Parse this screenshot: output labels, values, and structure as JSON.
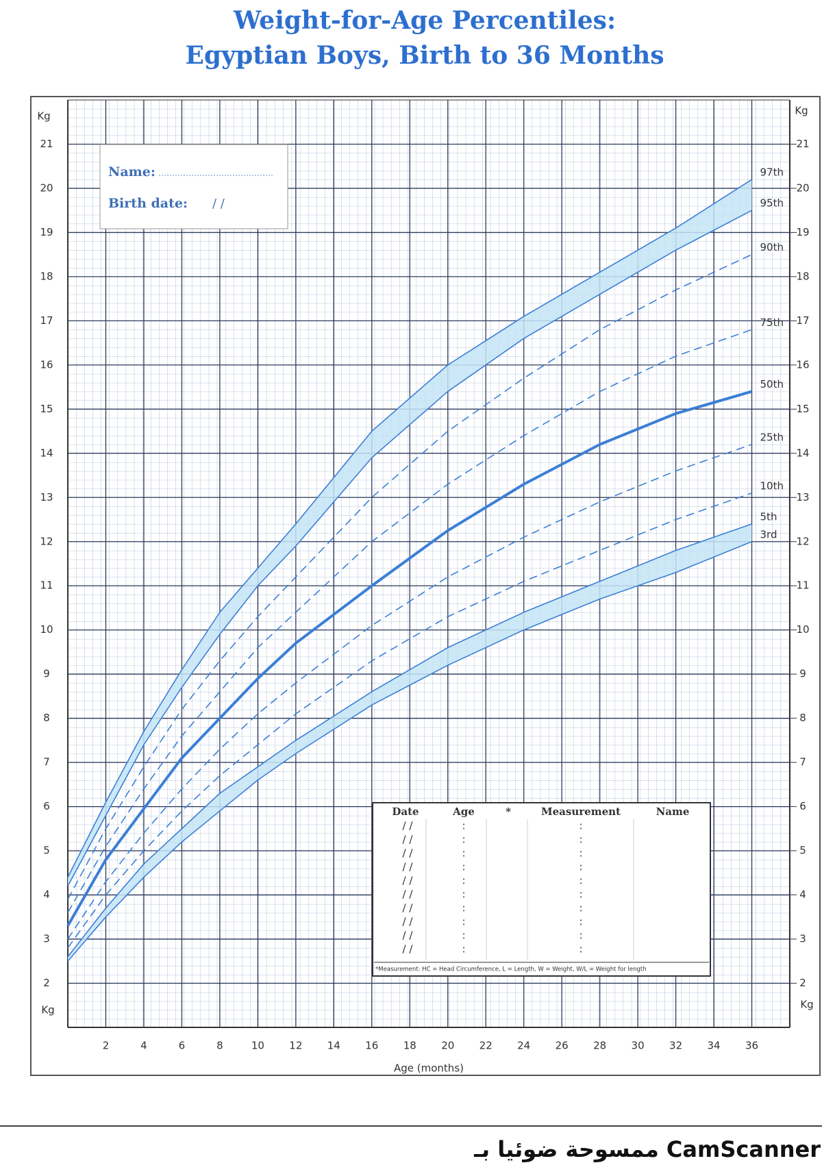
{
  "chart_data": {
    "type": "line",
    "title": "Weight-for-Age Percentiles:",
    "subtitle": "Egyptian Boys, Birth to 36 Months",
    "x_label": "Age (months)",
    "y_label": "Kg",
    "x": [
      0,
      2,
      4,
      6,
      8,
      10,
      12,
      16,
      20,
      24,
      28,
      32,
      36
    ],
    "xlim": [
      0,
      38
    ],
    "xticks": [
      2,
      4,
      6,
      8,
      10,
      12,
      14,
      16,
      18,
      20,
      22,
      24,
      26,
      28,
      30,
      32,
      34,
      36
    ],
    "ylim": [
      1,
      22
    ],
    "yticks": [
      2,
      3,
      4,
      5,
      6,
      7,
      8,
      9,
      10,
      11,
      12,
      13,
      14,
      15,
      16,
      17,
      18,
      19,
      20,
      21
    ],
    "y2lim": [
      1,
      22
    ],
    "y2ticks": [
      2,
      3,
      4,
      5,
      6,
      7,
      8,
      9,
      10,
      11,
      12,
      13,
      14,
      15,
      16,
      17,
      18,
      19,
      20,
      21
    ],
    "grid": true,
    "band_color": "#c4e4f6",
    "series": [
      {
        "name": "97th",
        "color": "#3b7fd6",
        "dashed": false,
        "bold": false,
        "fill_to": "95th",
        "values": [
          4.4,
          6.1,
          7.7,
          9.1,
          10.4,
          11.4,
          12.4,
          14.5,
          16.0,
          17.1,
          18.1,
          19.1,
          20.2
        ]
      },
      {
        "name": "95th",
        "color": "#3b7fd6",
        "dashed": false,
        "bold": false,
        "values": [
          4.2,
          5.8,
          7.4,
          8.7,
          9.9,
          11.0,
          11.9,
          13.9,
          15.4,
          16.6,
          17.6,
          18.6,
          19.5
        ]
      },
      {
        "name": "90th",
        "color": "#3b7fd6",
        "dashed": true,
        "bold": false,
        "values": [
          3.9,
          5.5,
          6.9,
          8.2,
          9.3,
          10.3,
          11.2,
          13.0,
          14.5,
          15.7,
          16.8,
          17.7,
          18.5
        ]
      },
      {
        "name": "75th",
        "color": "#3b7fd6",
        "dashed": true,
        "bold": false,
        "values": [
          3.6,
          5.1,
          6.4,
          7.6,
          8.6,
          9.6,
          10.4,
          12.0,
          13.3,
          14.4,
          15.4,
          16.2,
          16.8
        ]
      },
      {
        "name": "50th",
        "color": "#3b7fd6",
        "dashed": false,
        "bold": true,
        "values": [
          3.3,
          4.8,
          5.95,
          7.1,
          8.0,
          8.9,
          9.7,
          11.0,
          12.25,
          13.3,
          14.2,
          14.9,
          15.4
        ]
      },
      {
        "name": "25th",
        "color": "#3b7fd6",
        "dashed": true,
        "bold": false,
        "values": [
          3.0,
          4.3,
          5.4,
          6.4,
          7.3,
          8.1,
          8.8,
          10.1,
          11.2,
          12.1,
          12.9,
          13.6,
          14.2
        ]
      },
      {
        "name": "10th",
        "color": "#3b7fd6",
        "dashed": true,
        "bold": false,
        "values": [
          2.8,
          4.0,
          5.0,
          5.9,
          6.7,
          7.4,
          8.1,
          9.3,
          10.3,
          11.1,
          11.8,
          12.5,
          13.1
        ]
      },
      {
        "name": "5th",
        "color": "#3b7fd6",
        "dashed": false,
        "bold": false,
        "fill_to": "3rd",
        "values": [
          2.6,
          3.7,
          4.7,
          5.5,
          6.3,
          6.9,
          7.5,
          8.6,
          9.6,
          10.4,
          11.1,
          11.8,
          12.4
        ]
      },
      {
        "name": "3rd",
        "color": "#3b7fd6",
        "dashed": false,
        "bold": false,
        "values": [
          2.5,
          3.5,
          4.4,
          5.2,
          5.9,
          6.6,
          7.2,
          8.3,
          9.2,
          10.0,
          10.7,
          11.3,
          12.0
        ]
      }
    ]
  },
  "name_box": {
    "name": "Name:",
    "birth_date": "Birth date:",
    "date_slashes": "/      /"
  },
  "record_table": {
    "headers": [
      "Date",
      "Age",
      "*",
      "Measurement",
      "Name"
    ],
    "date_placeholder": "/   /",
    "separator": ":",
    "footnote": "*Measurement: HC = Head Circumference, L = Length, W = Weight, W/L = Weight for length"
  },
  "footer": "ممسوحة ضوئيا بـ CamScanner"
}
